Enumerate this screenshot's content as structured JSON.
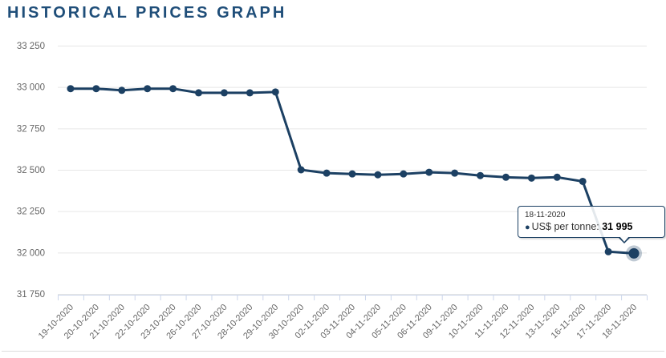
{
  "page_title": "HISTORICAL PRICES GRAPH",
  "colors": {
    "title": "#1f4e79",
    "series": "#1c4063",
    "halo": "rgba(28,64,99,0.28)",
    "gridline": "#e6e6e6",
    "axis_line": "#ccd6eb",
    "axis_label": "#666666",
    "divider": "#dddddd"
  },
  "chart_data": {
    "type": "line",
    "title": "HISTORICAL PRICES GRAPH",
    "xlabel": "",
    "ylabel": "",
    "grid": true,
    "legend": false,
    "ylim": [
      31750,
      33250
    ],
    "ytick_interval": 250,
    "ytick_labels_top_to_bottom": [
      "33 250",
      "33 000",
      "32 750",
      "32 500",
      "32 250",
      "32 000",
      "31 750"
    ],
    "categories": [
      "19-10-2020",
      "20-10-2020",
      "21-10-2020",
      "22-10-2020",
      "23-10-2020",
      "26-10-2020",
      "27-10-2020",
      "28-10-2020",
      "29-10-2020",
      "30-10-2020",
      "02-11-2020",
      "03-11-2020",
      "04-11-2020",
      "05-11-2020",
      "06-11-2020",
      "09-11-2020",
      "10-11-2020",
      "11-11-2020",
      "12-11-2020",
      "13-11-2020",
      "16-11-2020",
      "17-11-2020",
      "18-11-2020"
    ],
    "series": [
      {
        "name": "US$ per tonne",
        "values": [
          32990,
          32990,
          32980,
          32990,
          32990,
          32965,
          32965,
          32965,
          32970,
          32500,
          32480,
          32475,
          32470,
          32475,
          32485,
          32480,
          32465,
          32455,
          32450,
          32455,
          32430,
          32005,
          31995
        ]
      }
    ],
    "highlighted_point": {
      "category": "18-11-2020",
      "value": 31995,
      "index": 22
    },
    "tooltip": {
      "date": "18-11-2020",
      "bullet": "●",
      "series_label": "US$ per tonne:",
      "value": "31 995"
    }
  }
}
